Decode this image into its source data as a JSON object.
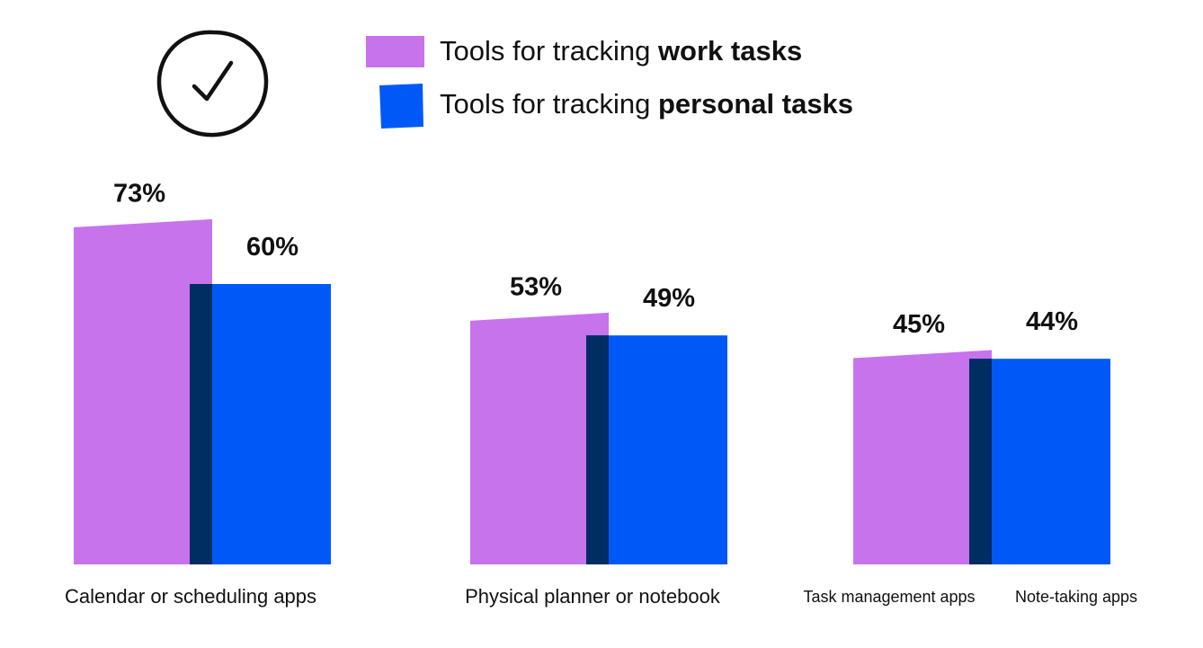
{
  "chart_data": {
    "type": "bar",
    "categories": [
      "Calendar or scheduling apps",
      "Physical planner or notebook",
      "Task management apps"
    ],
    "series": [
      {
        "name": "Tools for tracking work tasks",
        "values": [
          73,
          53,
          45
        ]
      },
      {
        "name": "Tools for tracking personal tasks",
        "values": [
          60,
          49,
          44
        ]
      }
    ],
    "value_labels": {
      "work": [
        "73%",
        "53%",
        "45%"
      ],
      "personal": [
        "60%",
        "49%",
        "44%"
      ]
    },
    "category_labels": [
      [
        "Calendar or scheduling apps"
      ],
      [
        "Physical planner or notebook"
      ],
      [
        "Task management apps",
        "Note-taking apps"
      ]
    ],
    "legend": {
      "placement": "top",
      "items": [
        {
          "prefix": "Tools for tracking ",
          "bold": "work tasks",
          "color": "#c773ec"
        },
        {
          "prefix": "Tools for tracking ",
          "bold": "personal tasks",
          "color": "#0059f7"
        }
      ]
    },
    "ylim": [
      0,
      100
    ],
    "grid": false,
    "unit": "%"
  },
  "colors": {
    "work": "#c773ec",
    "personal": "#0059f7",
    "overlap": "#002d62"
  },
  "icons": {
    "badge": "checkmark-circle-icon"
  }
}
